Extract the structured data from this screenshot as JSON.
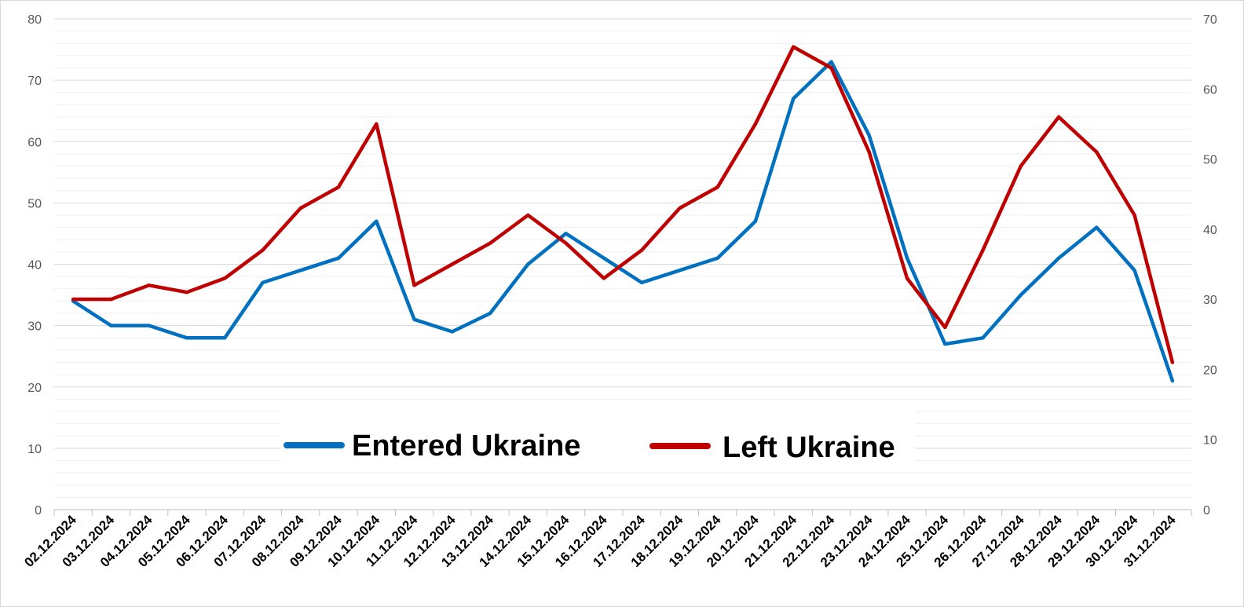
{
  "chart_data": {
    "type": "line",
    "title": "",
    "xlabel": "",
    "ylabel": "",
    "categories": [
      "02.12.2024",
      "03.12.2024",
      "04.12.2024",
      "05.12.2024",
      "06.12.2024",
      "07.12.2024",
      "08.12.2024",
      "09.12.2024",
      "10.12.2024",
      "11.12.2024",
      "12.12.2024",
      "13.12.2024",
      "14.12.2024",
      "15.12.2024",
      "16.12.2024",
      "17.12.2024",
      "18.12.2024",
      "19.12.2024",
      "20.12.2024",
      "21.12.2024",
      "22.12.2024",
      "23.12.2024",
      "24.12.2024",
      "25.12.2024",
      "26.12.2024",
      "27.12.2024",
      "28.12.2024",
      "29.12.2024",
      "30.12.2024",
      "31.12.2024"
    ],
    "y_left": {
      "min": 0,
      "max": 80,
      "ticks": [
        0,
        10,
        20,
        30,
        40,
        50,
        60,
        70,
        80
      ]
    },
    "y_right": {
      "min": 0,
      "max": 70,
      "ticks": [
        0,
        10,
        20,
        30,
        40,
        50,
        60,
        70
      ]
    },
    "grid": true,
    "legend_position": "center",
    "series": [
      {
        "name": "Entered Ukraine",
        "axis": "left",
        "color": "#0070c0",
        "values": [
          34,
          30,
          30,
          28,
          28,
          37,
          39,
          41,
          47,
          31,
          29,
          32,
          40,
          45,
          41,
          37,
          39,
          41,
          47,
          67,
          73,
          61,
          41,
          27,
          28,
          35,
          41,
          46,
          39,
          21
        ]
      },
      {
        "name": "Left Ukraine",
        "axis": "right",
        "color": "#c00000",
        "values": [
          30,
          30,
          32,
          31,
          33,
          37,
          43,
          46,
          55,
          32,
          35,
          38,
          42,
          38,
          33,
          37,
          43,
          46,
          55,
          66,
          63,
          51,
          33,
          26,
          37,
          49,
          56,
          51,
          42,
          21
        ]
      }
    ]
  }
}
